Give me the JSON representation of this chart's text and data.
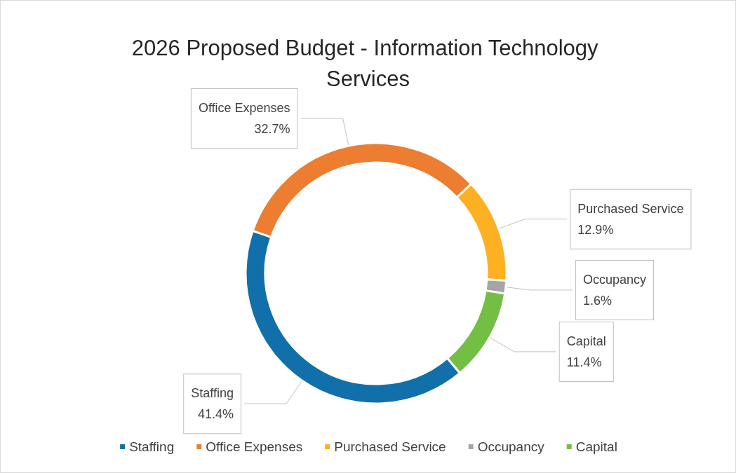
{
  "chart_data": {
    "type": "donut",
    "title": "2026 Proposed Budget - Information Technology Services",
    "categories": [
      "Staffing",
      "Office Expenses",
      "Purchased Service",
      "Occupancy",
      "Capital"
    ],
    "values": [
      41.4,
      32.7,
      12.9,
      1.6,
      11.4
    ],
    "value_labels": [
      "41.4%",
      "32.7%",
      "12.9%",
      "1.6%",
      "11.4%"
    ],
    "colors": [
      "#1170aa",
      "#ed7d31",
      "#fdb022",
      "#a5a5a5",
      "#72bf44"
    ],
    "legend": "bottom"
  }
}
